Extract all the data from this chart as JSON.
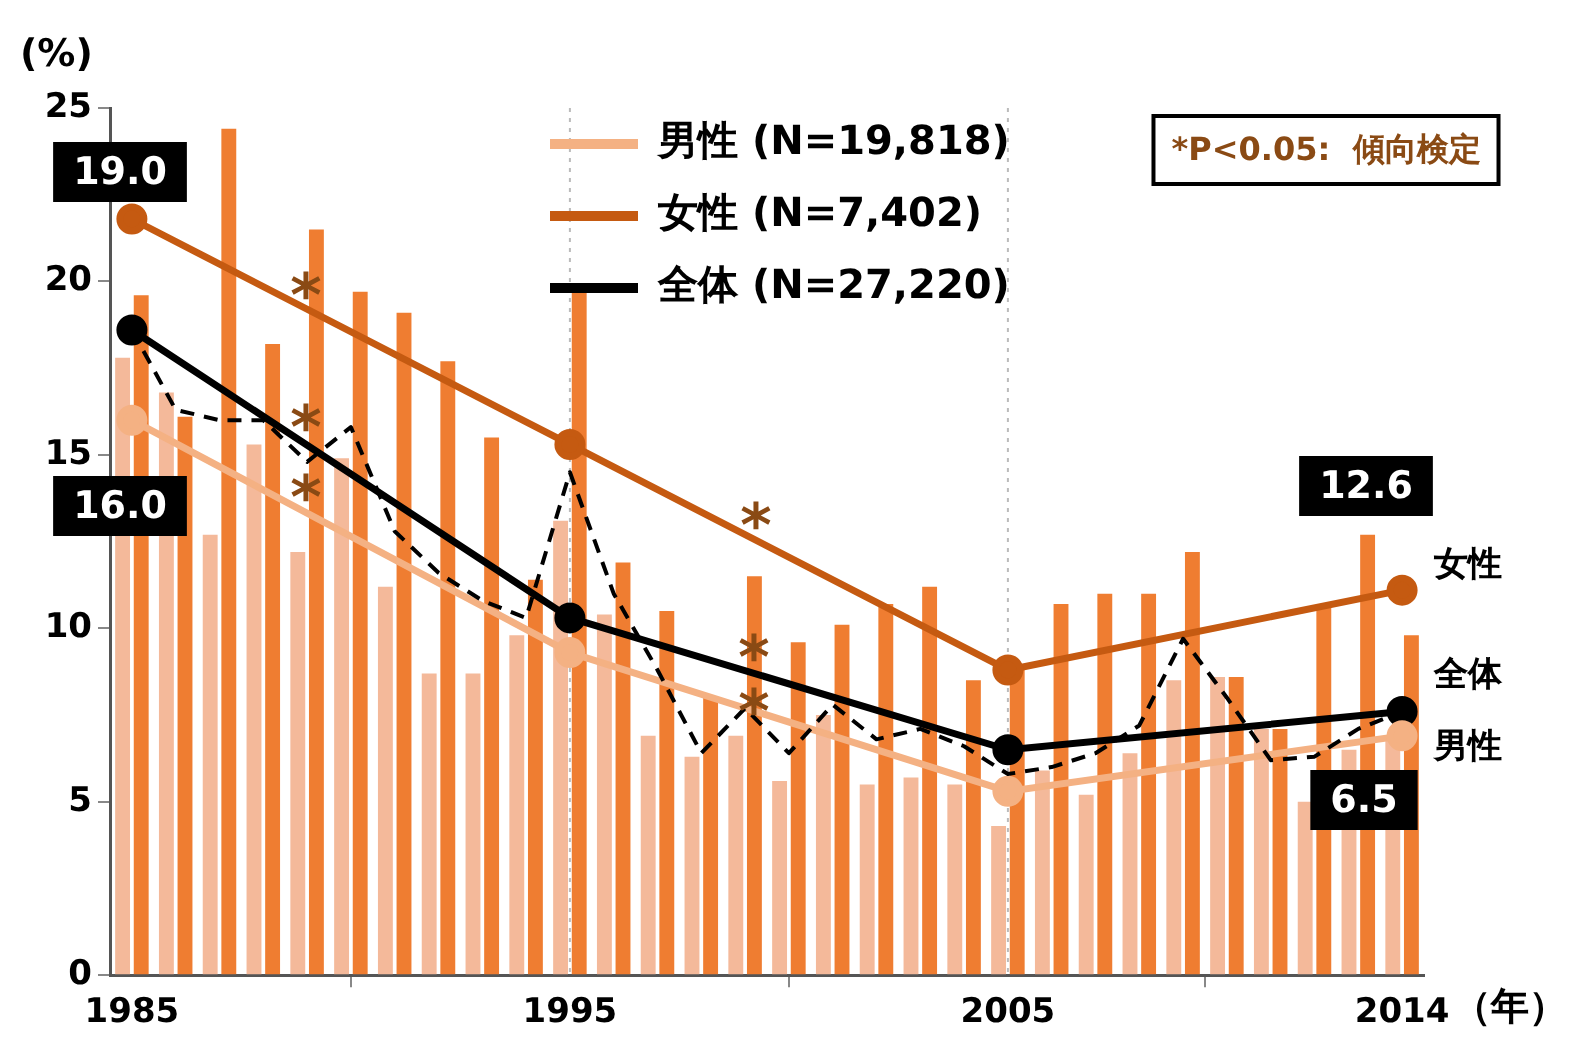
{
  "chart_data": {
    "type": "bar",
    "ylabel": "(%)",
    "xlabel": "（年）",
    "x": [
      1985,
      1986,
      1987,
      1988,
      1989,
      1990,
      1991,
      1992,
      1993,
      1994,
      1995,
      1996,
      1997,
      1998,
      1999,
      2000,
      2001,
      2002,
      2003,
      2004,
      2005,
      2006,
      2007,
      2008,
      2009,
      2010,
      2011,
      2012,
      2013,
      2014
    ],
    "series": [
      {
        "color": "#f4b99a",
        "values": [
          17.8,
          16.8,
          12.7,
          15.3,
          12.2,
          14.9,
          11.2,
          8.7,
          8.7,
          9.8,
          13.1,
          10.4,
          6.9,
          6.3,
          6.9,
          5.6,
          7.5,
          5.5,
          5.7,
          5.5,
          4.3,
          5.9,
          5.2,
          6.4,
          8.5,
          8.6,
          7.1,
          5.0,
          6.5,
          6.8
        ]
      },
      {
        "color": "#ef7d31",
        "values": [
          19.6,
          16.1,
          24.4,
          18.2,
          21.5,
          19.7,
          19.1,
          17.7,
          15.5,
          11.4,
          19.7,
          11.9,
          10.5,
          8.0,
          11.5,
          9.6,
          10.1,
          10.7,
          11.2,
          8.5,
          8.9,
          10.7,
          11.0,
          11.0,
          12.2,
          8.6,
          7.1,
          10.7,
          12.7,
          9.8
        ]
      },
      {
        "type": "line",
        "color": "#000000",
        "line_style": "dashed",
        "marker": "none",
        "values": [
          18.6,
          16.3,
          16.0,
          16.0,
          14.8,
          15.8,
          12.8,
          11.6,
          10.8,
          10.3,
          14.5,
          11.0,
          8.8,
          6.4,
          7.7,
          6.4,
          7.8,
          6.8,
          7.1,
          6.6,
          5.8,
          6.0,
          6.4,
          7.2,
          9.7,
          8.0,
          6.2,
          6.3,
          7.1,
          7.6
        ]
      },
      {
        "type": "line",
        "name": "男性 (N=19,818)",
        "color": "#f4b183",
        "marker": "circle",
        "x": [
          1985,
          1995,
          2005,
          2014
        ],
        "values": [
          16.0,
          9.3,
          5.3,
          6.9
        ]
      },
      {
        "type": "line",
        "name": "女性 (N=7,402)",
        "color": "#c55a11",
        "marker": "circle",
        "x": [
          1985,
          1995,
          2005,
          2014
        ],
        "values": [
          21.8,
          15.3,
          8.8,
          11.1
        ]
      },
      {
        "type": "line",
        "name": "全体 (N=27,220)",
        "color": "#000000",
        "marker": "circle",
        "x": [
          1985,
          1995,
          2005,
          2014
        ],
        "values": [
          18.6,
          10.3,
          6.5,
          7.6
        ]
      }
    ],
    "xlim": [
      1984.5,
      2014.5
    ],
    "xticks": [
      1985,
      1995,
      2005,
      2014
    ],
    "ylim": [
      0,
      25
    ],
    "yticks": [
      0,
      5,
      10,
      15,
      20,
      25
    ],
    "ref_lines": [
      {
        "axis": "x",
        "value": 1995,
        "color": "#bbbbbb",
        "line_style": "dotted"
      },
      {
        "axis": "x",
        "value": 2005,
        "color": "#bbbbbb",
        "line_style": "dotted"
      }
    ],
    "legend": "top",
    "annotations": [
      "19.0",
      "16.0",
      "12.6",
      "6.5",
      "*P<0.05:  傾向検定",
      "*",
      "*",
      "*",
      "*",
      "*",
      "*",
      "女性",
      "全体",
      "男性"
    ]
  }
}
